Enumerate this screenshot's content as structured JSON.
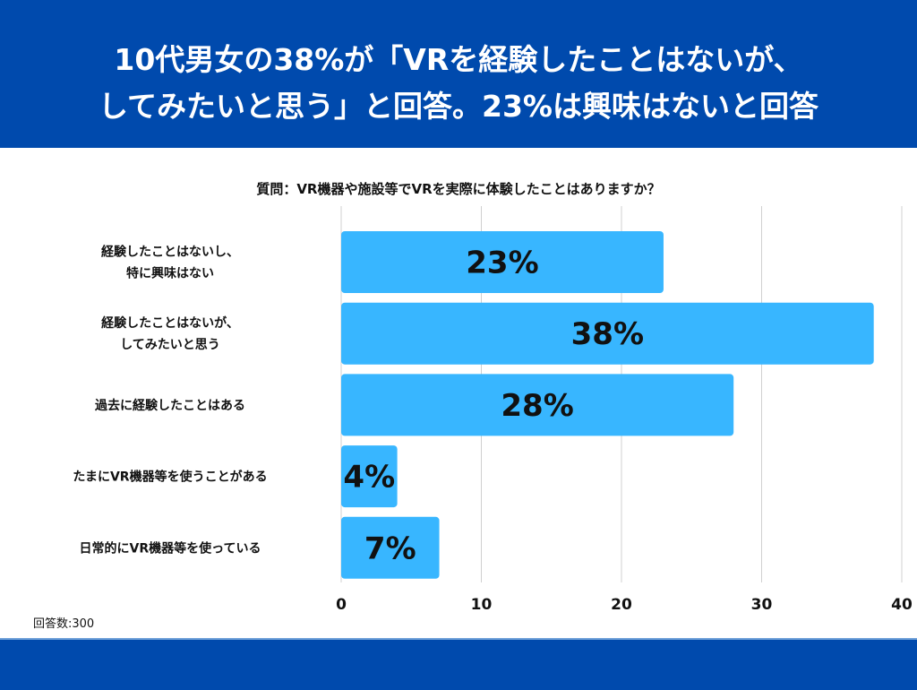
{
  "header": {
    "title_line1": "10代男女の38%が「VRを経験したことはないが、",
    "title_line2": "してみたいと思う」と回答。23%は興味はないと回答"
  },
  "colors": {
    "band": "#004AAD",
    "bar": "#38B6FF",
    "grid": "#d0d0d0"
  },
  "chart_data": {
    "type": "bar",
    "orientation": "horizontal",
    "title": "質問：VR機器や施設等でVRを実際に体験したことはありますか？",
    "categories": [
      [
        "経験したことはないし、",
        "特に興味はない"
      ],
      [
        "経験したことはないが、",
        "してみたいと思う"
      ],
      [
        "過去に経験したことはある"
      ],
      [
        "たまにVR機器等を使うことがある"
      ],
      [
        "日常的にVR機器等を使っている"
      ]
    ],
    "values": [
      23,
      38,
      28,
      4,
      7
    ],
    "data_labels": [
      "23%",
      "38%",
      "28%",
      "4%",
      "7%"
    ],
    "xlim": [
      0,
      40
    ],
    "xticks": [
      "0",
      "10",
      "20",
      "30",
      "40"
    ],
    "grid": true
  },
  "footnote": "回答数:300"
}
